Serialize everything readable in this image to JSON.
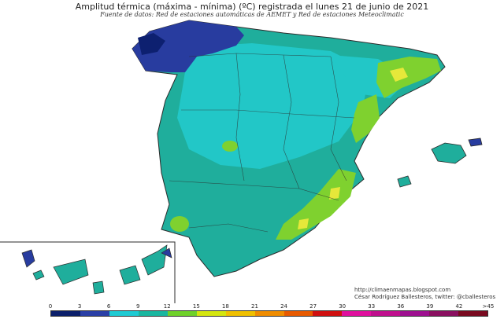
{
  "title": "Amplitud térmica (máxima - mínima) (ºC) registrada el lunes 21 de junio de 2021",
  "subtitle": "Fuente de datos: Red de estaciones automáticas de AEMET y Red de estaciones Meteoclimatic",
  "credits": {
    "url": "http://climaenmapas.blogspot.com",
    "author": "César Rodríguez Ballesteros, twitter: @cballesteros"
  },
  "legend": {
    "ticks": [
      "0",
      "3",
      "6",
      "9",
      "12",
      "15",
      "18",
      "21",
      "24",
      "27",
      "30",
      "33",
      "36",
      "39",
      "42",
      ">45"
    ],
    "colors": [
      "#0b1f6b",
      "#2a3fa6",
      "#1ecbd3",
      "#19b7a0",
      "#6fd12a",
      "#d4e60f",
      "#f0c000",
      "#f08c00",
      "#e85a00",
      "#d01010",
      "#e0109e",
      "#c0108e",
      "#9e1090",
      "#8a1060",
      "#7a0a20"
    ]
  },
  "colors": {
    "sea": "#ffffff",
    "land_main": "#1fae9c",
    "land_light": "#22c7c7",
    "galicia": "#283c9f",
    "dark_blue": "#0d2070",
    "warm_green": "#7fd12f",
    "yellow": "#e6e83a",
    "border": "#2b2b2b"
  }
}
